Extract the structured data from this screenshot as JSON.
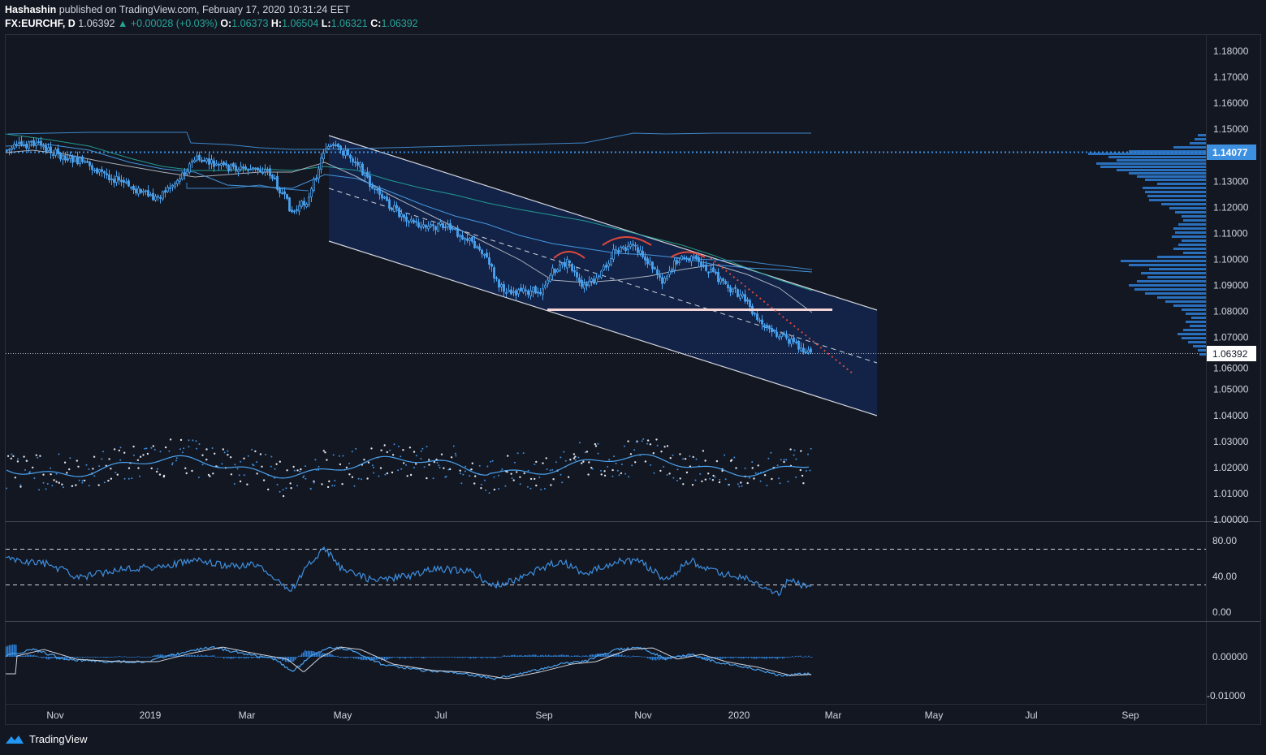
{
  "header": {
    "author": "Hashashin",
    "published_text": "published on TradingView.com, February 17, 2020 10:31:24 EET",
    "symbol": "FX:EURCHF, D",
    "last": "1.06392",
    "change": "▲ +0.00028 (+0.03%)",
    "o_label": "O:",
    "o_value": "1.06373",
    "h_label": "H:",
    "h_value": "1.06504",
    "l_label": "L:",
    "l_value": "1.06321",
    "c_label": "C:",
    "c_value": "1.06392"
  },
  "price_axis": {
    "ticks": [
      "1.18000",
      "1.17000",
      "1.16000",
      "1.15000",
      "1.13000",
      "1.12000",
      "1.11000",
      "1.10000",
      "1.09000",
      "1.08000",
      "1.07000",
      "1.05000",
      "1.04000",
      "1.03000",
      "1.02000",
      "1.01000",
      "1.00000"
    ],
    "tick_values": [
      1.18,
      1.17,
      1.16,
      1.15,
      1.13,
      1.12,
      1.11,
      1.1,
      1.09,
      1.08,
      1.07,
      1.05,
      1.04,
      1.03,
      1.02,
      1.01,
      1.0
    ],
    "hidden_tick_1060": "1.06000",
    "level_label": "1.14077",
    "last_price_label": "1.06392"
  },
  "rsi_axis": {
    "ticks": [
      "80.00",
      "40.00",
      "0.00"
    ]
  },
  "macd_axis": {
    "ticks": [
      "0.00000",
      "-0.01000"
    ]
  },
  "time_axis": {
    "labels": [
      "Nov",
      "2019",
      "Mar",
      "May",
      "Jul",
      "Sep",
      "Nov",
      "2020",
      "Mar",
      "May",
      "Jul",
      "Sep"
    ]
  },
  "branding": {
    "label": "TradingView"
  },
  "colors": {
    "background": "#131722",
    "grid": "#2a2e39",
    "candle": "#4aa3f0",
    "channel_fill": "#12244a",
    "level": "#3d8fe0",
    "accent_green": "#26a69a",
    "arc_red": "#e0473b"
  }
}
